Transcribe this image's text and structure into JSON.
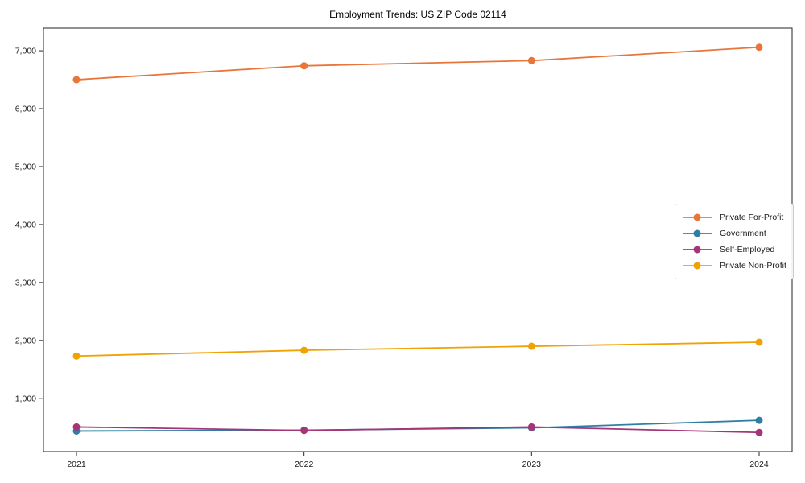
{
  "chart_data": {
    "type": "line",
    "title": "Employment Trends: US ZIP Code 02114",
    "xlabel": "",
    "ylabel": "",
    "x": [
      "2021",
      "2022",
      "2023",
      "2024"
    ],
    "series": [
      {
        "name": "Private For-Profit",
        "color": "#e8763a",
        "values": [
          6500,
          6740,
          6830,
          7060
        ]
      },
      {
        "name": "Government",
        "color": "#2f7fa5",
        "values": [
          435,
          450,
          490,
          620
        ]
      },
      {
        "name": "Self-Employed",
        "color": "#a53577",
        "values": [
          505,
          445,
          505,
          410
        ]
      },
      {
        "name": "Private Non-Profit",
        "color": "#f0a104",
        "values": [
          1730,
          1830,
          1900,
          1970
        ]
      }
    ],
    "yticks": [
      1000,
      2000,
      3000,
      4000,
      5000,
      6000,
      7000
    ],
    "ylim": [
      80,
      7390
    ],
    "grid": false,
    "legend_position": "center-right",
    "axis_color": "#262626",
    "tick_label_color": "#1a1a1a"
  }
}
